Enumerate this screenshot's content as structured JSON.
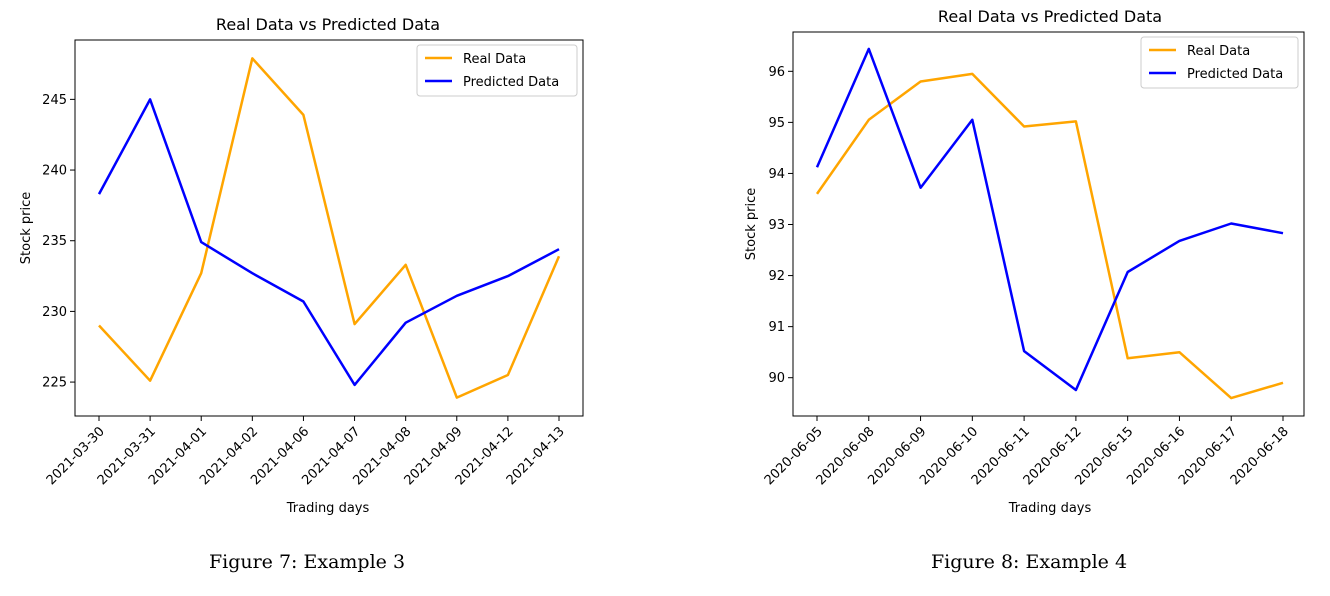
{
  "figures": [
    {
      "caption": "Figure 7: Example 3",
      "chart": {
        "type": "line",
        "title": "Real Data vs Predicted Data",
        "xlabel": "Trading days",
        "ylabel": "Stock price",
        "categories": [
          "2021-03-30",
          "2021-03-31",
          "2021-04-01",
          "2021-04-02",
          "2021-04-06",
          "2021-04-07",
          "2021-04-08",
          "2021-04-09",
          "2021-04-12",
          "2021-04-13"
        ],
        "yticks": [
          225,
          230,
          235,
          240,
          245
        ],
        "ylim": [
          222.6,
          249.2
        ],
        "legend": "top-right",
        "grid": false,
        "series": [
          {
            "name": "Real Data",
            "color": "#FFA500",
            "values": [
              229.0,
              225.1,
              232.7,
              247.9,
              243.9,
              229.1,
              233.3,
              223.9,
              225.5,
              233.9
            ]
          },
          {
            "name": "Predicted Data",
            "color": "#0000FF",
            "values": [
              238.3,
              245.0,
              234.9,
              232.7,
              230.7,
              224.8,
              229.2,
              231.1,
              232.5,
              234.4
            ]
          }
        ]
      }
    },
    {
      "caption": "Figure 8: Example 4",
      "chart": {
        "type": "line",
        "title": "Real Data vs Predicted Data",
        "xlabel": "Trading days",
        "ylabel": "Stock price",
        "categories": [
          "2020-06-05",
          "2020-06-08",
          "2020-06-09",
          "2020-06-10",
          "2020-06-11",
          "2020-06-12",
          "2020-06-15",
          "2020-06-16",
          "2020-06-17",
          "2020-06-18"
        ],
        "yticks": [
          90,
          91,
          92,
          93,
          94,
          95,
          96
        ],
        "ylim": [
          89.25,
          96.77
        ],
        "legend": "top-right",
        "grid": false,
        "series": [
          {
            "name": "Real Data",
            "color": "#FFA500",
            "values": [
              93.6,
              95.05,
              95.8,
              95.95,
              94.92,
              95.02,
              90.38,
              90.5,
              89.6,
              89.9
            ]
          },
          {
            "name": "Predicted Data",
            "color": "#0000FF",
            "values": [
              94.12,
              96.44,
              93.72,
              95.05,
              90.52,
              89.76,
              92.07,
              92.68,
              93.02,
              92.83
            ]
          }
        ]
      }
    }
  ],
  "chart_data": [
    {
      "type": "line",
      "title": "Real Data vs Predicted Data",
      "xlabel": "Trading days",
      "ylabel": "Stock price",
      "categories": [
        "2021-03-30",
        "2021-03-31",
        "2021-04-01",
        "2021-04-02",
        "2021-04-06",
        "2021-04-07",
        "2021-04-08",
        "2021-04-09",
        "2021-04-12",
        "2021-04-13"
      ],
      "ylim": [
        222.6,
        249.2
      ],
      "series": [
        {
          "name": "Real Data",
          "values": [
            229.0,
            225.1,
            232.7,
            247.9,
            243.9,
            229.1,
            233.3,
            223.9,
            225.5,
            233.9
          ]
        },
        {
          "name": "Predicted Data",
          "values": [
            238.3,
            245.0,
            234.9,
            232.7,
            230.7,
            224.8,
            229.2,
            231.1,
            232.5,
            234.4
          ]
        }
      ]
    },
    {
      "type": "line",
      "title": "Real Data vs Predicted Data",
      "xlabel": "Trading days",
      "ylabel": "Stock price",
      "categories": [
        "2020-06-05",
        "2020-06-08",
        "2020-06-09",
        "2020-06-10",
        "2020-06-11",
        "2020-06-12",
        "2020-06-15",
        "2020-06-16",
        "2020-06-17",
        "2020-06-18"
      ],
      "ylim": [
        89.25,
        96.77
      ],
      "series": [
        {
          "name": "Real Data",
          "values": [
            93.6,
            95.05,
            95.8,
            95.95,
            94.92,
            95.02,
            90.38,
            90.5,
            89.6,
            89.9
          ]
        },
        {
          "name": "Predicted Data",
          "values": [
            94.12,
            96.44,
            93.72,
            95.05,
            90.52,
            89.76,
            92.07,
            92.68,
            93.02,
            92.83
          ]
        }
      ]
    }
  ]
}
